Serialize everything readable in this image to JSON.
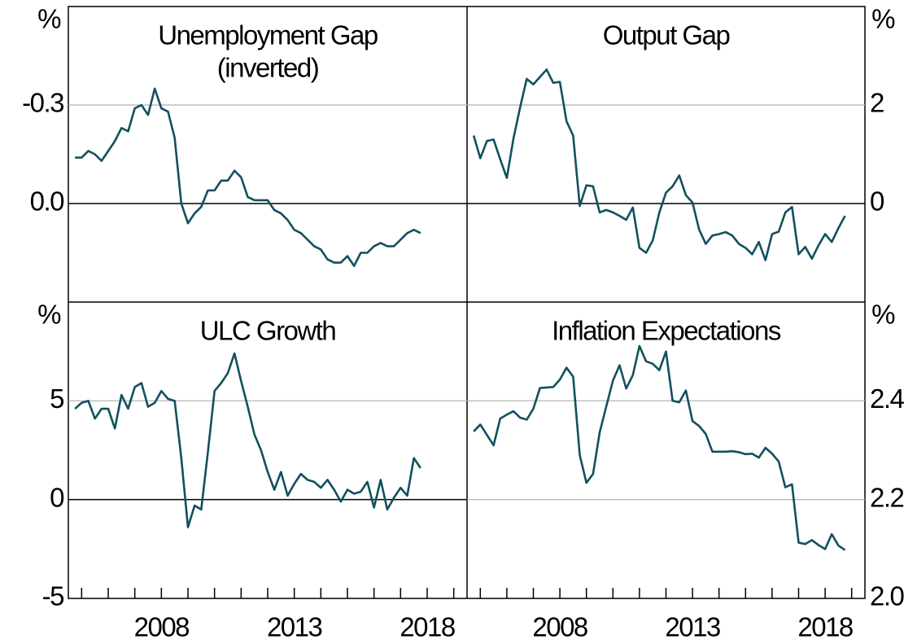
{
  "chart_data": [
    {
      "type": "line",
      "title": "Unemployment Gap",
      "subtitle": "(inverted)",
      "ylabel": "%",
      "ylim": [
        -0.6,
        0.3
      ],
      "y_inverted": true,
      "yticks": [
        -0.3,
        {
          "value": 0,
          "label": "0.0"
        }
      ],
      "xlim": [
        2004.5,
        2019.5
      ],
      "grid": true,
      "series": [
        {
          "name": "Unemployment Gap",
          "color": "#12505e",
          "x": [
            2004.75,
            2005,
            2005.25,
            2005.5,
            2005.75,
            2006,
            2006.25,
            2006.5,
            2006.75,
            2007,
            2007.25,
            2007.5,
            2007.75,
            2008,
            2008.25,
            2008.5,
            2008.75,
            2009,
            2009.25,
            2009.5,
            2009.75,
            2010,
            2010.25,
            2010.5,
            2010.75,
            2011,
            2011.25,
            2011.5,
            2011.75,
            2012,
            2012.25,
            2012.5,
            2012.75,
            2013,
            2013.25,
            2013.5,
            2013.75,
            2014,
            2014.25,
            2014.5,
            2014.75,
            2015,
            2015.25,
            2015.5,
            2015.75,
            2016,
            2016.25,
            2016.5,
            2016.75,
            2017,
            2017.25,
            2017.5,
            2017.75
          ],
          "values": [
            -0.14,
            -0.14,
            -0.16,
            -0.15,
            -0.13,
            -0.16,
            -0.19,
            -0.23,
            -0.22,
            -0.29,
            -0.3,
            -0.27,
            -0.35,
            -0.29,
            -0.28,
            -0.2,
            0.0,
            0.06,
            0.03,
            0.01,
            -0.04,
            -0.04,
            -0.07,
            -0.07,
            -0.1,
            -0.08,
            -0.02,
            -0.01,
            -0.01,
            -0.01,
            0.02,
            0.03,
            0.05,
            0.08,
            0.09,
            0.11,
            0.13,
            0.14,
            0.17,
            0.18,
            0.18,
            0.16,
            0.19,
            0.15,
            0.15,
            0.13,
            0.12,
            0.13,
            0.13,
            0.11,
            0.09,
            0.08,
            0.09
          ]
        }
      ]
    },
    {
      "type": "line",
      "title": "Output Gap",
      "ylabel": "%",
      "ylim": [
        -2,
        4
      ],
      "yticks": [
        0,
        2
      ],
      "xlim": [
        2004.5,
        2019.5
      ],
      "grid": true,
      "series": [
        {
          "name": "Output Gap",
          "color": "#12505e",
          "x": [
            2004.75,
            2005,
            2005.25,
            2005.5,
            2005.75,
            2006,
            2006.25,
            2006.5,
            2006.75,
            2007,
            2007.25,
            2007.5,
            2007.75,
            2008,
            2008.25,
            2008.5,
            2008.75,
            2009,
            2009.25,
            2009.5,
            2009.75,
            2010,
            2010.25,
            2010.5,
            2010.75,
            2011,
            2011.25,
            2011.5,
            2011.75,
            2012,
            2012.25,
            2012.5,
            2012.75,
            2013,
            2013.25,
            2013.5,
            2013.75,
            2014,
            2014.25,
            2014.5,
            2014.75,
            2015,
            2015.25,
            2015.5,
            2015.75,
            2016,
            2016.25,
            2016.5,
            2016.75,
            2017,
            2017.25,
            2017.5,
            2017.75,
            2018,
            2018.25,
            2018.5,
            2018.75
          ],
          "values": [
            1.38,
            0.92,
            1.27,
            1.3,
            0.9,
            0.52,
            1.32,
            1.95,
            2.53,
            2.42,
            2.57,
            2.72,
            2.45,
            2.47,
            1.67,
            1.38,
            -0.05,
            0.37,
            0.35,
            -0.18,
            -0.13,
            -0.18,
            -0.25,
            -0.33,
            -0.08,
            -0.9,
            -1.0,
            -0.75,
            -0.18,
            0.22,
            0.35,
            0.57,
            0.17,
            0.02,
            -0.53,
            -0.82,
            -0.65,
            -0.62,
            -0.58,
            -0.65,
            -0.82,
            -0.9,
            -1.03,
            -0.78,
            -1.15,
            -0.62,
            -0.57,
            -0.18,
            -0.07,
            -1.03,
            -0.88,
            -1.12,
            -0.85,
            -0.62,
            -0.78,
            -0.5,
            -0.25
          ]
        }
      ]
    },
    {
      "type": "line",
      "title": "ULC Growth",
      "ylabel": "%",
      "ylim": [
        -5,
        10
      ],
      "yticks": [
        -5,
        0,
        5
      ],
      "xlim": [
        2004.5,
        2019.5
      ],
      "xticks": [
        2008,
        2013,
        2018
      ],
      "xminor": [
        2005,
        2006,
        2007,
        2008,
        2009,
        2010,
        2011,
        2012,
        2013,
        2014,
        2015,
        2016,
        2017,
        2018,
        2019
      ],
      "grid": true,
      "series": [
        {
          "name": "ULC Growth",
          "color": "#12505e",
          "x": [
            2004.75,
            2005,
            2005.25,
            2005.5,
            2005.75,
            2006,
            2006.25,
            2006.5,
            2006.75,
            2007,
            2007.25,
            2007.5,
            2007.75,
            2008,
            2008.25,
            2008.5,
            2008.75,
            2009,
            2009.25,
            2009.5,
            2009.75,
            2010,
            2010.25,
            2010.5,
            2010.75,
            2011,
            2011.25,
            2011.5,
            2011.75,
            2012,
            2012.25,
            2012.5,
            2012.75,
            2013,
            2013.25,
            2013.5,
            2013.75,
            2014,
            2014.25,
            2014.5,
            2014.75,
            2015,
            2015.25,
            2015.5,
            2015.75,
            2016,
            2016.25,
            2016.5,
            2016.75,
            2017,
            2017.25,
            2017.5,
            2017.75
          ],
          "values": [
            4.6,
            4.9,
            5.0,
            4.1,
            4.6,
            4.6,
            3.6,
            5.3,
            4.6,
            5.7,
            5.9,
            4.7,
            4.9,
            5.5,
            5.1,
            5.0,
            2.1,
            -1.4,
            -0.3,
            -0.5,
            2.4,
            5.5,
            5.9,
            6.4,
            7.4,
            6.0,
            4.7,
            3.3,
            2.5,
            1.4,
            0.5,
            1.4,
            0.2,
            0.8,
            1.3,
            1.0,
            0.9,
            0.6,
            1.0,
            0.5,
            -0.1,
            0.5,
            0.3,
            0.4,
            0.9,
            -0.4,
            1.0,
            -0.5,
            0.1,
            0.6,
            0.2,
            2.1,
            1.6
          ]
        }
      ]
    },
    {
      "type": "line",
      "title": "Inflation Expectations",
      "ylabel": "%",
      "ylim": [
        2.0,
        2.6
      ],
      "yticks": [
        {
          "value": 2,
          "label": "2.0"
        },
        2.2,
        2.4
      ],
      "xlim": [
        2004.5,
        2019.5
      ],
      "xticks": [
        2008,
        2013,
        2018
      ],
      "xminor": [
        2005,
        2006,
        2007,
        2008,
        2009,
        2010,
        2011,
        2012,
        2013,
        2014,
        2015,
        2016,
        2017,
        2018,
        2019
      ],
      "grid": true,
      "series": [
        {
          "name": "Inflation Expectations",
          "color": "#12505e",
          "x": [
            2004.75,
            2005,
            2005.25,
            2005.5,
            2005.75,
            2006,
            2006.25,
            2006.5,
            2006.75,
            2007,
            2007.25,
            2007.5,
            2007.75,
            2008,
            2008.25,
            2008.5,
            2008.75,
            2009,
            2009.25,
            2009.5,
            2009.75,
            2010,
            2010.25,
            2010.5,
            2010.75,
            2011,
            2011.25,
            2011.5,
            2011.75,
            2012,
            2012.25,
            2012.5,
            2012.75,
            2013,
            2013.25,
            2013.5,
            2013.75,
            2014,
            2014.25,
            2014.5,
            2014.75,
            2015,
            2015.25,
            2015.5,
            2015.75,
            2016,
            2016.25,
            2016.5,
            2016.75,
            2017,
            2017.25,
            2017.5,
            2017.75,
            2018,
            2018.25,
            2018.5,
            2018.75
          ],
          "values": [
            2.338,
            2.352,
            2.331,
            2.31,
            2.364,
            2.372,
            2.379,
            2.366,
            2.362,
            2.384,
            2.426,
            2.427,
            2.428,
            2.443,
            2.467,
            2.449,
            2.29,
            2.234,
            2.252,
            2.336,
            2.389,
            2.441,
            2.472,
            2.425,
            2.452,
            2.511,
            2.48,
            2.475,
            2.462,
            2.5,
            2.4,
            2.397,
            2.421,
            2.359,
            2.349,
            2.333,
            2.297,
            2.297,
            2.297,
            2.298,
            2.296,
            2.292,
            2.293,
            2.285,
            2.305,
            2.293,
            2.277,
            2.225,
            2.231,
            2.113,
            2.11,
            2.118,
            2.108,
            2.1,
            2.13,
            2.107,
            2.098
          ]
        }
      ]
    }
  ]
}
